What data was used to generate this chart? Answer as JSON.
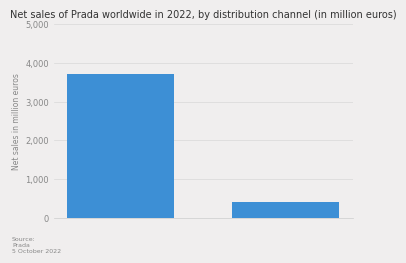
{
  "categories": [
    "",
    ""
  ],
  "values": [
    3718,
    404
  ],
  "bar_color": "#3d8fd5",
  "title": "Net sales of Prada worldwide in 2022, by distribution channel (in million euros)",
  "ylabel": "Net sales in million euros",
  "ylim": [
    0,
    5000
  ],
  "yticks": [
    0,
    1000,
    2000,
    3000,
    4000,
    5000
  ],
  "ytick_labels": [
    "0",
    "1,000",
    "2,000",
    "3,000",
    "4,000",
    "5,000"
  ],
  "source_text": "Source:\nPrada\n5 October 2022",
  "bg_color": "#f0eeee",
  "plot_bg_color": "#f0eeee",
  "title_fontsize": 7.0,
  "axis_label_fontsize": 5.5,
  "tick_fontsize": 6.0
}
